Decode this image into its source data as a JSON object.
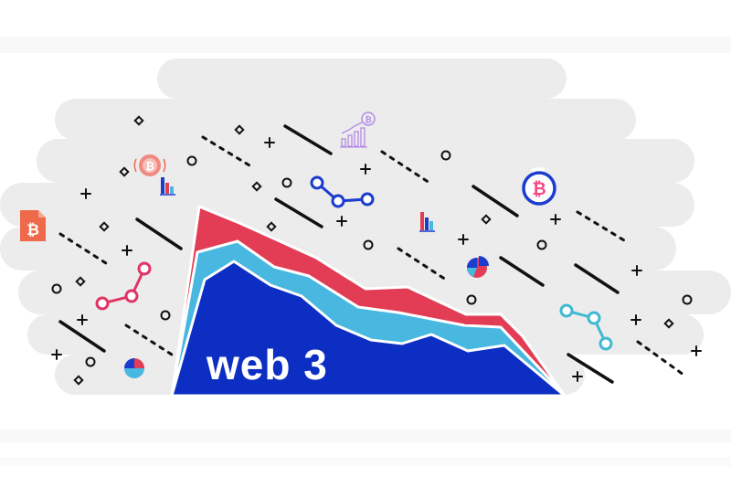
{
  "headline": "web 3",
  "colors": {
    "background": "#ffffff",
    "cloud": "#ececec",
    "cloud_light": "#f3f3f3",
    "dark_blue": "#0d2ec3",
    "light_blue": "#48b8e0",
    "red": "#e23d55",
    "line_dark": "#111111",
    "bitcoin_orange": "#ee6a4a",
    "bitcoin_blue": "#1b3ccd",
    "bitcoin_pink": "#f44a86",
    "violet": "#b48be6",
    "network_pink": "#e03564",
    "network_teal": "#3fb9d2"
  },
  "icons": [
    "bitcoin-document-icon",
    "bitcoin-coin-icon",
    "bitcoin-growth-chart-icon",
    "bitcoin-circle-icon",
    "bar-chart-icon",
    "pie-chart-icon",
    "network-nodes-icon",
    "area-chart-illustration"
  ]
}
